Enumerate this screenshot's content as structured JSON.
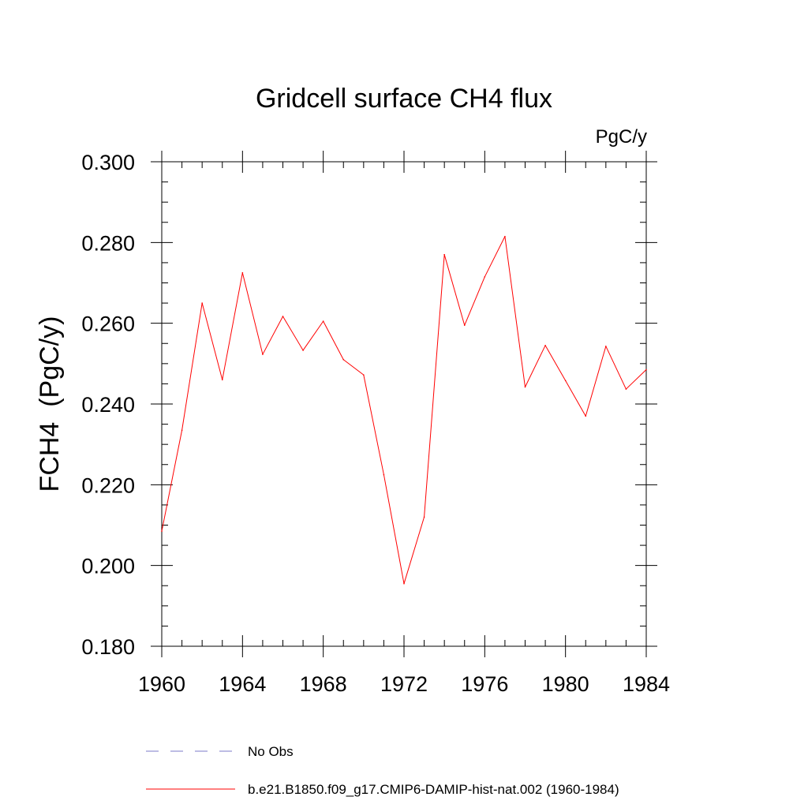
{
  "chart_data": {
    "type": "line",
    "title": "Gridcell surface CH4 flux",
    "units_label": "PgC/y",
    "ylabel": "FCH4  (PgC/y)",
    "xlabel": "",
    "xlim": [
      1960,
      1984
    ],
    "ylim": [
      0.18,
      0.3
    ],
    "x_ticks": [
      1960,
      1964,
      1968,
      1972,
      1976,
      1980,
      1984
    ],
    "x_tick_labels": [
      "1960",
      "1964",
      "1968",
      "1972",
      "1976",
      "1980",
      "1984"
    ],
    "y_ticks": [
      0.18,
      0.2,
      0.22,
      0.24,
      0.26,
      0.28,
      0.3
    ],
    "y_tick_labels": [
      "0.180",
      "0.200",
      "0.220",
      "0.240",
      "0.260",
      "0.280",
      "0.300"
    ],
    "grid": false,
    "legend_placement": "bottom",
    "legend": [
      {
        "label": "No Obs",
        "color": "#7b78c8",
        "style": "dashed"
      },
      {
        "label": "b.e21.B1850.f09_g17.CMIP6-DAMIP-hist-nat.002 (1960-1984)",
        "color": "#ff0000",
        "style": "solid"
      }
    ],
    "series": [
      {
        "name": "b.e21.B1850.f09_g17.CMIP6-DAMIP-hist-nat.002 (1960-1984)",
        "color": "#ff0000",
        "x": [
          1960,
          1961,
          1962,
          1963,
          1964,
          1965,
          1966,
          1967,
          1968,
          1969,
          1970,
          1971,
          1972,
          1973,
          1974,
          1975,
          1976,
          1977,
          1978,
          1979,
          1980,
          1981,
          1982,
          1983,
          1984
        ],
        "y": [
          0.2085,
          0.2335,
          0.265,
          0.246,
          0.2725,
          0.2523,
          0.2617,
          0.2533,
          0.2605,
          0.251,
          0.2472,
          0.2225,
          0.1955,
          0.212,
          0.277,
          0.2595,
          0.2715,
          0.2815,
          0.2442,
          0.2545,
          0.2458,
          0.237,
          0.2543,
          0.2437,
          0.2485
        ]
      }
    ]
  }
}
